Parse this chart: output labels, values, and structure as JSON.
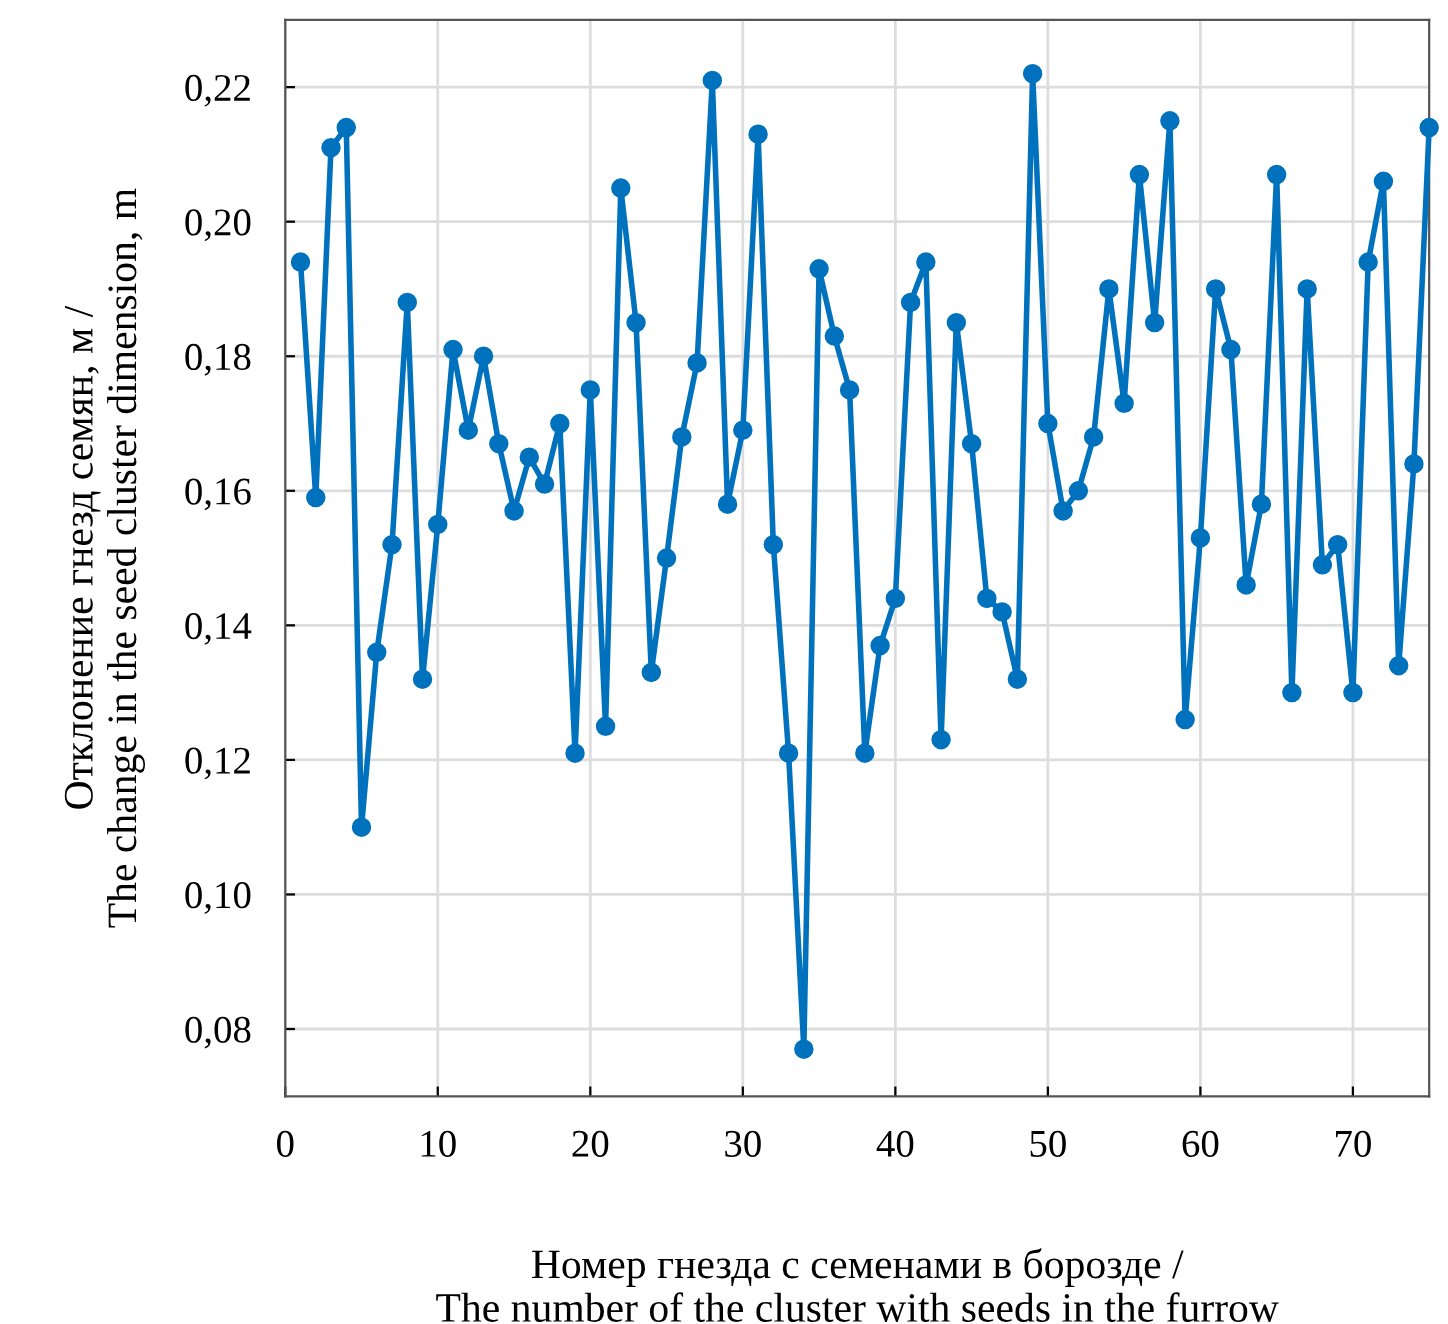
{
  "chart_data": {
    "type": "line",
    "xlabel": "Номер гнезда с семенами в борозде /\nThe number of the cluster with seeds in the furrow",
    "ylabel": "Отклонение гнезд семян, м /\nThe change in the seed cluster dimension, m",
    "x": [
      1,
      2,
      3,
      4,
      5,
      6,
      7,
      8,
      9,
      10,
      11,
      12,
      13,
      14,
      15,
      16,
      17,
      18,
      19,
      20,
      21,
      22,
      23,
      24,
      25,
      26,
      27,
      28,
      29,
      30,
      31,
      32,
      33,
      34,
      35,
      36,
      37,
      38,
      39,
      40,
      41,
      42,
      43,
      44,
      45,
      46,
      47,
      48,
      49,
      50,
      51,
      52,
      53,
      54,
      55,
      56,
      57,
      58,
      59,
      60,
      61,
      62,
      63,
      64,
      65,
      66,
      67,
      68,
      69,
      70,
      71,
      72,
      73,
      74,
      75
    ],
    "series": [
      {
        "color": "#0072bd",
        "values": [
          0.194,
          0.159,
          0.211,
          0.214,
          0.11,
          0.136,
          0.152,
          0.188,
          0.132,
          0.155,
          0.181,
          0.169,
          0.18,
          0.167,
          0.157,
          0.165,
          0.161,
          0.17,
          0.121,
          0.175,
          0.125,
          0.205,
          0.185,
          0.133,
          0.15,
          0.168,
          0.179,
          0.221,
          0.158,
          0.169,
          0.213,
          0.152,
          0.121,
          0.077,
          0.193,
          0.183,
          0.175,
          0.121,
          0.137,
          0.144,
          0.188,
          0.194,
          0.123,
          0.185,
          0.167,
          0.144,
          0.142,
          0.132,
          0.222,
          0.17,
          0.157,
          0.16,
          0.168,
          0.19,
          0.173,
          0.207,
          0.185,
          0.215,
          0.126,
          0.153,
          0.19,
          0.181,
          0.146,
          0.158,
          0.207,
          0.13,
          0.19,
          0.149,
          0.152,
          0.13,
          0.194,
          0.206,
          0.134,
          0.164,
          0.214
        ]
      }
    ],
    "xlim": [
      0,
      75
    ],
    "xticks": [
      0,
      10,
      20,
      30,
      40,
      50,
      60,
      70
    ],
    "ylim": [
      0.07,
      0.23
    ],
    "yticks": [
      {
        "value": 0.08,
        "label": "0,08"
      },
      {
        "value": 0.1,
        "label": "0,10"
      },
      {
        "value": 0.12,
        "label": "0,12"
      },
      {
        "value": 0.14,
        "label": "0,14"
      },
      {
        "value": 0.16,
        "label": "0,16"
      },
      {
        "value": 0.18,
        "label": "0,18"
      },
      {
        "value": 0.2,
        "label": "0,20"
      },
      {
        "value": 0.22,
        "label": "0,22"
      }
    ],
    "grid": true,
    "marker": "circle",
    "line_style": "solid"
  }
}
